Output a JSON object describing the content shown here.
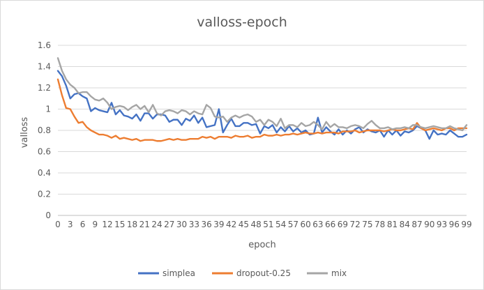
{
  "chart_data": {
    "type": "line",
    "title": "valloss-epoch",
    "xlabel": "epoch",
    "ylabel": "valloss",
    "ylim": [
      0,
      1.6
    ],
    "ytick_step": 0.2,
    "xtick_step": 3,
    "grid": true,
    "legend_position": "bottom",
    "x": [
      0,
      1,
      2,
      3,
      4,
      5,
      6,
      7,
      8,
      9,
      10,
      11,
      12,
      13,
      14,
      15,
      16,
      17,
      18,
      19,
      20,
      21,
      22,
      23,
      24,
      25,
      26,
      27,
      28,
      29,
      30,
      31,
      32,
      33,
      34,
      35,
      36,
      37,
      38,
      39,
      40,
      41,
      42,
      43,
      44,
      45,
      46,
      47,
      48,
      49,
      50,
      51,
      52,
      53,
      54,
      55,
      56,
      57,
      58,
      59,
      60,
      61,
      62,
      63,
      64,
      65,
      66,
      67,
      68,
      69,
      70,
      71,
      72,
      73,
      74,
      75,
      76,
      77,
      78,
      79,
      80,
      81,
      82,
      83,
      84,
      85,
      86,
      87,
      88,
      89,
      90,
      91,
      92,
      93,
      94,
      95,
      96,
      97,
      98,
      99
    ],
    "series": [
      {
        "name": "simplea",
        "color": "#4472c4",
        "values": [
          1.36,
          1.31,
          1.22,
          1.1,
          1.14,
          1.15,
          1.12,
          1.1,
          0.98,
          1.01,
          0.99,
          0.98,
          0.97,
          1.06,
          0.95,
          0.99,
          0.94,
          0.93,
          0.91,
          0.95,
          0.89,
          0.96,
          0.96,
          0.91,
          0.95,
          0.95,
          0.94,
          0.88,
          0.9,
          0.9,
          0.85,
          0.91,
          0.89,
          0.94,
          0.87,
          0.92,
          0.83,
          0.84,
          0.85,
          1.0,
          0.78,
          0.85,
          0.91,
          0.84,
          0.84,
          0.87,
          0.87,
          0.85,
          0.86,
          0.77,
          0.84,
          0.82,
          0.85,
          0.78,
          0.83,
          0.79,
          0.84,
          0.79,
          0.82,
          0.78,
          0.8,
          0.76,
          0.77,
          0.92,
          0.78,
          0.83,
          0.79,
          0.76,
          0.81,
          0.76,
          0.8,
          0.77,
          0.81,
          0.83,
          0.78,
          0.81,
          0.79,
          0.78,
          0.8,
          0.74,
          0.8,
          0.76,
          0.8,
          0.75,
          0.79,
          0.78,
          0.8,
          0.84,
          0.82,
          0.8,
          0.72,
          0.8,
          0.76,
          0.77,
          0.76,
          0.8,
          0.77,
          0.74,
          0.74,
          0.76
        ]
      },
      {
        "name": "dropout-0.25",
        "color": "#ed7d31",
        "values": [
          1.28,
          1.13,
          1.01,
          1.0,
          0.93,
          0.87,
          0.88,
          0.83,
          0.8,
          0.78,
          0.76,
          0.76,
          0.75,
          0.73,
          0.75,
          0.72,
          0.73,
          0.72,
          0.71,
          0.72,
          0.7,
          0.71,
          0.71,
          0.71,
          0.7,
          0.7,
          0.71,
          0.72,
          0.71,
          0.72,
          0.71,
          0.71,
          0.72,
          0.72,
          0.72,
          0.74,
          0.73,
          0.74,
          0.72,
          0.74,
          0.74,
          0.74,
          0.73,
          0.75,
          0.74,
          0.74,
          0.75,
          0.73,
          0.74,
          0.74,
          0.76,
          0.75,
          0.75,
          0.76,
          0.75,
          0.76,
          0.76,
          0.77,
          0.76,
          0.77,
          0.78,
          0.77,
          0.77,
          0.78,
          0.77,
          0.78,
          0.78,
          0.78,
          0.77,
          0.79,
          0.79,
          0.79,
          0.8,
          0.78,
          0.79,
          0.8,
          0.8,
          0.8,
          0.8,
          0.79,
          0.8,
          0.81,
          0.8,
          0.8,
          0.81,
          0.82,
          0.81,
          0.87,
          0.82,
          0.8,
          0.81,
          0.82,
          0.81,
          0.8,
          0.82,
          0.82,
          0.8,
          0.82,
          0.82,
          0.82
        ]
      },
      {
        "name": "mix",
        "color": "#a5a5a5",
        "values": [
          1.48,
          1.36,
          1.28,
          1.23,
          1.2,
          1.15,
          1.16,
          1.16,
          1.12,
          1.09,
          1.08,
          1.1,
          1.06,
          1.0,
          1.02,
          1.03,
          1.02,
          0.99,
          1.02,
          1.04,
          1.0,
          1.03,
          0.97,
          1.04,
          0.96,
          0.94,
          0.98,
          0.99,
          0.98,
          0.96,
          0.99,
          0.98,
          0.95,
          0.98,
          0.96,
          0.95,
          1.04,
          1.01,
          0.93,
          0.92,
          0.93,
          0.88,
          0.92,
          0.94,
          0.92,
          0.94,
          0.95,
          0.93,
          0.88,
          0.9,
          0.85,
          0.9,
          0.88,
          0.84,
          0.91,
          0.82,
          0.85,
          0.85,
          0.83,
          0.87,
          0.84,
          0.85,
          0.88,
          0.85,
          0.81,
          0.88,
          0.83,
          0.86,
          0.83,
          0.83,
          0.82,
          0.84,
          0.85,
          0.84,
          0.82,
          0.86,
          0.89,
          0.85,
          0.82,
          0.82,
          0.83,
          0.81,
          0.82,
          0.82,
          0.83,
          0.82,
          0.85,
          0.85,
          0.83,
          0.82,
          0.83,
          0.84,
          0.83,
          0.82,
          0.82,
          0.84,
          0.82,
          0.81,
          0.8,
          0.85
        ]
      }
    ]
  }
}
